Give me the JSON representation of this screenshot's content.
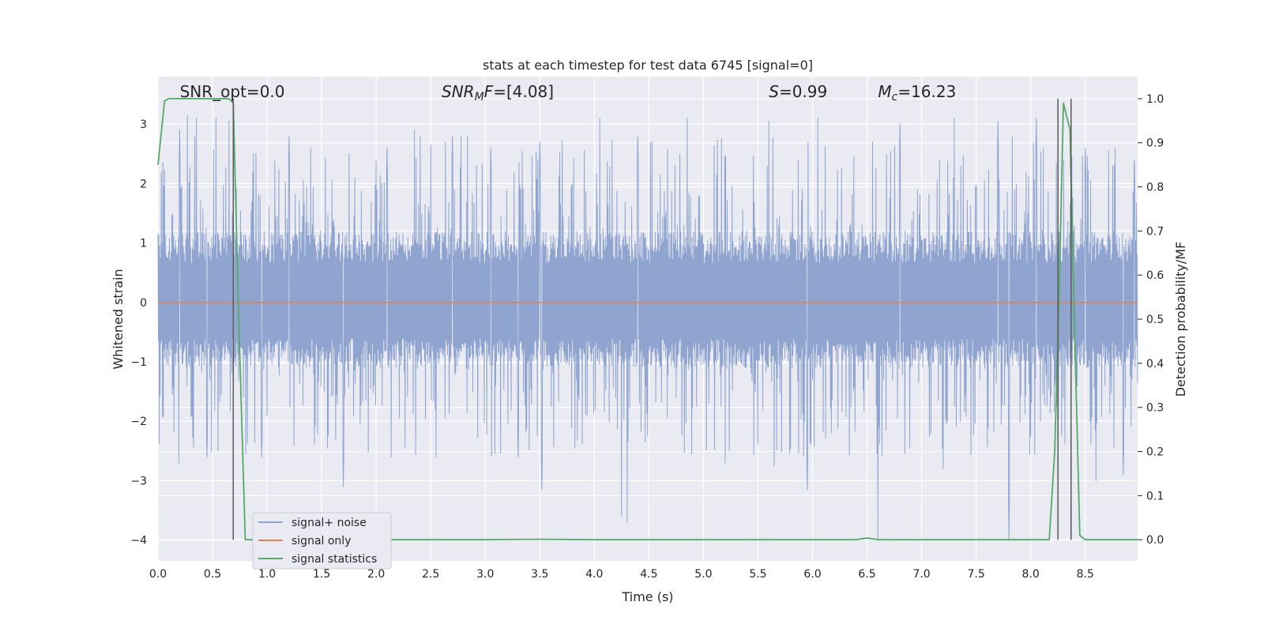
{
  "chart_data": {
    "type": "line",
    "title": "stats at each timestep for test data 6745 [signal=0]",
    "xlabel": "Time (s)",
    "ylabel": "Whitened strain",
    "ylabel_right": "Detection probability/MF",
    "xlim": [
      0.0,
      8.98
    ],
    "ylim": [
      -4.35,
      3.8
    ],
    "ylim_right": [
      -0.048,
      1.05
    ],
    "x_ticks": [
      0.0,
      0.5,
      1.0,
      1.5,
      2.0,
      2.5,
      3.0,
      3.5,
      4.0,
      4.5,
      5.0,
      5.5,
      6.0,
      6.5,
      7.0,
      7.5,
      8.0,
      8.5
    ],
    "x_tick_labels": [
      "0.0",
      "0.5",
      "1.0",
      "1.5",
      "2.0",
      "2.5",
      "3.0",
      "3.5",
      "4.0",
      "4.5",
      "5.0",
      "5.5",
      "6.0",
      "6.5",
      "7.0",
      "7.5",
      "8.0",
      "8.5"
    ],
    "y_ticks": [
      3,
      2,
      1,
      0,
      -1,
      -2,
      -3,
      -4
    ],
    "y_tick_labels": [
      "3",
      "2",
      "1",
      "0",
      "−1",
      "−2",
      "−3",
      "−4"
    ],
    "y2_ticks": [
      1.0,
      0.9,
      0.8,
      0.7,
      0.6,
      0.5,
      0.4,
      0.3,
      0.2,
      0.1,
      0.0
    ],
    "y2_tick_labels": [
      "1.0",
      "0.9",
      "0.8",
      "0.7",
      "0.6",
      "0.5",
      "0.4",
      "0.3",
      "0.2",
      "0.1",
      "0.0"
    ],
    "grid": true,
    "legend_placement": "lower-left",
    "annotations": [
      {
        "text": "SNR_opt=0.0",
        "x": 0.2
      },
      {
        "text": "SNR_MF=[4.08]",
        "x": 2.6
      },
      {
        "text": "S=0.99",
        "x": 5.6
      },
      {
        "text": "M_c=16.23",
        "x": 6.6
      }
    ],
    "vertical_lines": [
      0.69,
      8.25,
      8.37
    ],
    "series": [
      {
        "name": "signal+ noise",
        "color": "#8fa5cf",
        "axis": "left",
        "style": "noise",
        "noise_band": [
          -1.1,
          1.2
        ],
        "peaks": [
          {
            "x": 0.03,
            "y": 2.2
          },
          {
            "x": 0.2,
            "y": 2.9
          },
          {
            "x": 0.27,
            "y": 3.15
          },
          {
            "x": 0.35,
            "y": 3.1
          },
          {
            "x": 0.45,
            "y": 2.7
          },
          {
            "x": 0.53,
            "y": 3.1
          },
          {
            "x": 0.65,
            "y": 3.05
          },
          {
            "x": 0.9,
            "y": 2.5
          },
          {
            "x": 1.2,
            "y": 2.8
          },
          {
            "x": 1.4,
            "y": 2.6
          },
          {
            "x": 1.75,
            "y": 2.5
          },
          {
            "x": 2.1,
            "y": 2.6
          },
          {
            "x": 2.35,
            "y": 2.9
          },
          {
            "x": 2.7,
            "y": 2.8
          },
          {
            "x": 3.05,
            "y": 2.6
          },
          {
            "x": 3.5,
            "y": 2.7
          },
          {
            "x": 4.05,
            "y": 3.1
          },
          {
            "x": 4.4,
            "y": 2.8
          },
          {
            "x": 4.85,
            "y": 3.1
          },
          {
            "x": 5.2,
            "y": 2.9
          },
          {
            "x": 5.6,
            "y": 3.05
          },
          {
            "x": 6.05,
            "y": 3.1
          },
          {
            "x": 6.55,
            "y": 2.7
          },
          {
            "x": 6.8,
            "y": 3.0
          },
          {
            "x": 7.3,
            "y": 3.1
          },
          {
            "x": 7.7,
            "y": 3.05
          },
          {
            "x": 8.05,
            "y": 3.1
          },
          {
            "x": 8.5,
            "y": 2.6
          },
          {
            "x": 8.75,
            "y": 2.3
          },
          {
            "x": 8.95,
            "y": 2.4
          }
        ],
        "troughs": [
          {
            "x": 0.19,
            "y": -2.7
          },
          {
            "x": 0.45,
            "y": -2.6
          },
          {
            "x": 0.95,
            "y": -2.6
          },
          {
            "x": 1.7,
            "y": -3.1
          },
          {
            "x": 2.55,
            "y": -2.6
          },
          {
            "x": 3.3,
            "y": -2.6
          },
          {
            "x": 3.52,
            "y": -3.15
          },
          {
            "x": 4.25,
            "y": -3.6
          },
          {
            "x": 4.3,
            "y": -3.7
          },
          {
            "x": 5.2,
            "y": -2.7
          },
          {
            "x": 5.65,
            "y": -2.75
          },
          {
            "x": 5.95,
            "y": -3.15
          },
          {
            "x": 6.6,
            "y": -4.0
          },
          {
            "x": 7.2,
            "y": -2.8
          },
          {
            "x": 7.8,
            "y": -4.0
          },
          {
            "x": 8.6,
            "y": -3.0
          },
          {
            "x": 8.85,
            "y": -2.9
          }
        ]
      },
      {
        "name": "signal only",
        "color": "#dd8452",
        "axis": "left",
        "x": [
          0.0,
          8.98
        ],
        "y": [
          0.0,
          0.0
        ]
      },
      {
        "name": "signal statistics",
        "color": "#55a868",
        "axis": "right",
        "x": [
          0.0,
          0.06,
          0.1,
          0.2,
          0.3,
          0.5,
          0.65,
          0.69,
          0.74,
          0.8,
          0.82,
          1.0,
          2.0,
          3.0,
          3.5,
          4.0,
          5.0,
          6.0,
          6.4,
          6.5,
          6.6,
          7.0,
          8.0,
          8.17,
          8.22,
          8.26,
          8.3,
          8.36,
          8.4,
          8.45,
          8.5,
          8.98
        ],
        "y": [
          0.85,
          0.995,
          1.0,
          1.0,
          1.0,
          1.0,
          1.0,
          0.99,
          0.5,
          0.0,
          0.0,
          0.0,
          0.0,
          0.0,
          0.001,
          0.0,
          0.0,
          0.0,
          0.0,
          0.004,
          0.0,
          0.0,
          0.0,
          0.0,
          0.2,
          0.55,
          0.99,
          0.93,
          0.5,
          0.01,
          0.0,
          0.0
        ]
      }
    ]
  }
}
